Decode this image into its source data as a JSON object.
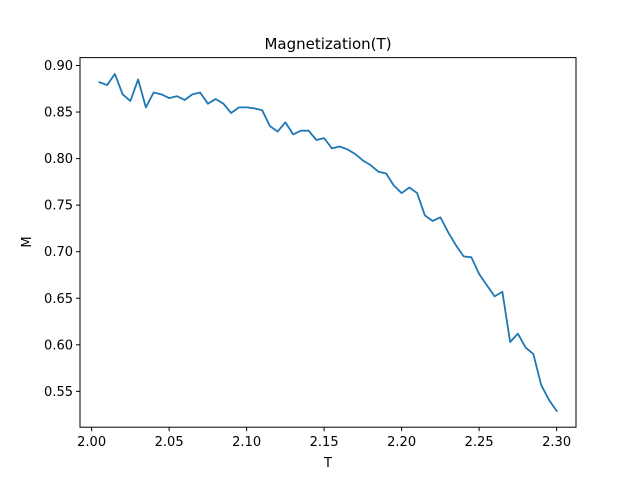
{
  "chart_data": {
    "type": "line",
    "title": "Magnetization(T)",
    "xlabel": "T",
    "ylabel": "M",
    "xlim": [
      1.9925,
      2.3125
    ],
    "ylim": [
      0.5115,
      0.9085
    ],
    "x_ticks": [
      "2.00",
      "2.05",
      "2.10",
      "2.15",
      "2.20",
      "2.25",
      "2.30"
    ],
    "y_ticks": [
      "0.55",
      "0.60",
      "0.65",
      "0.70",
      "0.75",
      "0.80",
      "0.85",
      "0.90"
    ],
    "grid": false,
    "legend": "none",
    "series": [
      {
        "color": "#1f77b4",
        "x": [
          2.005,
          2.01,
          2.015,
          2.02,
          2.025,
          2.03,
          2.035,
          2.04,
          2.045,
          2.05,
          2.055,
          2.06,
          2.065,
          2.07,
          2.075,
          2.08,
          2.085,
          2.09,
          2.095,
          2.1,
          2.105,
          2.11,
          2.115,
          2.12,
          2.125,
          2.13,
          2.135,
          2.14,
          2.145,
          2.15,
          2.155,
          2.16,
          2.165,
          2.17,
          2.175,
          2.18,
          2.185,
          2.19,
          2.195,
          2.2,
          2.205,
          2.21,
          2.215,
          2.22,
          2.225,
          2.23,
          2.235,
          2.24,
          2.245,
          2.25,
          2.255,
          2.26,
          2.265,
          2.27,
          2.275,
          2.28,
          2.285,
          2.29,
          2.295,
          2.3
        ],
        "values": [
          0.882,
          0.879,
          0.891,
          0.869,
          0.862,
          0.885,
          0.855,
          0.871,
          0.869,
          0.865,
          0.867,
          0.863,
          0.869,
          0.871,
          0.859,
          0.864,
          0.859,
          0.849,
          0.855,
          0.855,
          0.854,
          0.852,
          0.835,
          0.829,
          0.839,
          0.826,
          0.83,
          0.83,
          0.82,
          0.822,
          0.811,
          0.813,
          0.81,
          0.805,
          0.798,
          0.793,
          0.786,
          0.784,
          0.771,
          0.763,
          0.769,
          0.763,
          0.739,
          0.733,
          0.737,
          0.721,
          0.707,
          0.695,
          0.694,
          0.676,
          0.664,
          0.652,
          0.657,
          0.603,
          0.612,
          0.597,
          0.59,
          0.557,
          0.541,
          0.529
        ]
      }
    ]
  }
}
